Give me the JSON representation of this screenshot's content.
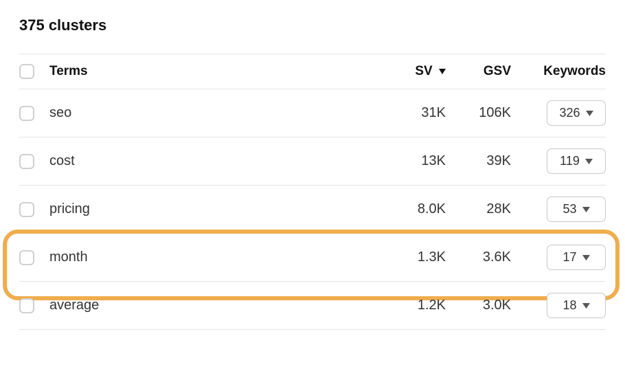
{
  "title": "375 clusters",
  "columns": {
    "terms": "Terms",
    "sv": "SV",
    "gsv": "GSV",
    "keywords": "Keywords"
  },
  "sort": {
    "column": "sv",
    "direction": "desc"
  },
  "rows": [
    {
      "term": "seo",
      "sv": "31K",
      "gsv": "106K",
      "keywords": "326",
      "highlighted": false
    },
    {
      "term": "cost",
      "sv": "13K",
      "gsv": "39K",
      "keywords": "119",
      "highlighted": false
    },
    {
      "term": "pricing",
      "sv": "8.0K",
      "gsv": "28K",
      "keywords": "53",
      "highlighted": false
    },
    {
      "term": "month",
      "sv": "1.3K",
      "gsv": "3.6K",
      "keywords": "17",
      "highlighted": true
    },
    {
      "term": "average",
      "sv": "1.2K",
      "gsv": "3.0K",
      "keywords": "18",
      "highlighted": false
    }
  ],
  "colors": {
    "highlight_border": "#f0ad4e",
    "border": "#e5e5e5",
    "text": "#333333",
    "heading": "#111111",
    "checkbox_border": "#d0d0d0"
  }
}
